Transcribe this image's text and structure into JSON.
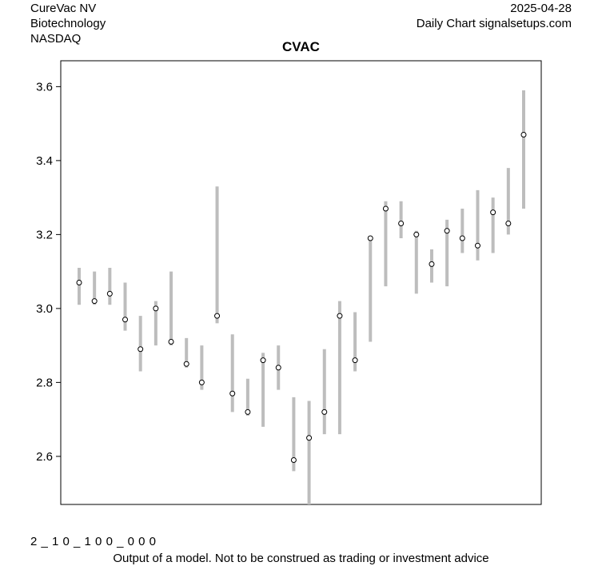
{
  "header": {
    "company": "CureVac NV",
    "sector": "Biotechnology",
    "exchange": "NASDAQ",
    "date": "2025-04-28",
    "source": "Daily Chart signalsetups.com"
  },
  "footer": {
    "code": "2 _ 1 0 _ 1 0 0 _ 0 0 0",
    "disclaimer": "Output of a model. Not to be construed as trading or investment advice"
  },
  "colors": {
    "range_bar": "#bdbdbd",
    "marker": "#000000",
    "frame": "#000000"
  },
  "chart_data": {
    "type": "scatter",
    "title": "CVAC",
    "xlabel": "",
    "ylabel": "",
    "ylim": [
      2.47,
      3.67
    ],
    "yticks": [
      "2.6",
      "2.8",
      "3.0",
      "3.2",
      "3.4",
      "3.6"
    ],
    "grid": false,
    "series": [
      {
        "values": [
          {
            "low": 3.01,
            "high": 3.11,
            "close": 3.07
          },
          {
            "low": 3.01,
            "high": 3.1,
            "close": 3.02
          },
          {
            "low": 3.01,
            "high": 3.11,
            "close": 3.04
          },
          {
            "low": 2.94,
            "high": 3.07,
            "close": 2.97
          },
          {
            "low": 2.83,
            "high": 2.98,
            "close": 2.89
          },
          {
            "low": 2.9,
            "high": 3.02,
            "close": 3.0
          },
          {
            "low": 2.9,
            "high": 3.1,
            "close": 2.91
          },
          {
            "low": 2.84,
            "high": 2.92,
            "close": 2.85
          },
          {
            "low": 2.78,
            "high": 2.9,
            "close": 2.8
          },
          {
            "low": 2.96,
            "high": 3.33,
            "close": 2.98
          },
          {
            "low": 2.72,
            "high": 2.93,
            "close": 2.77
          },
          {
            "low": 2.71,
            "high": 2.81,
            "close": 2.72
          },
          {
            "low": 2.68,
            "high": 2.88,
            "close": 2.86
          },
          {
            "low": 2.78,
            "high": 2.9,
            "close": 2.84
          },
          {
            "low": 2.56,
            "high": 2.76,
            "close": 2.59
          },
          {
            "low": 2.47,
            "high": 2.75,
            "close": 2.65
          },
          {
            "low": 2.66,
            "high": 2.89,
            "close": 2.72
          },
          {
            "low": 2.66,
            "high": 3.02,
            "close": 2.98
          },
          {
            "low": 2.83,
            "high": 2.99,
            "close": 2.86
          },
          {
            "low": 2.91,
            "high": 3.19,
            "close": 3.19
          },
          {
            "low": 3.06,
            "high": 3.29,
            "close": 3.27
          },
          {
            "low": 3.19,
            "high": 3.29,
            "close": 3.23
          },
          {
            "low": 3.04,
            "high": 3.21,
            "close": 3.2
          },
          {
            "low": 3.07,
            "high": 3.16,
            "close": 3.12
          },
          {
            "low": 3.06,
            "high": 3.24,
            "close": 3.21
          },
          {
            "low": 3.15,
            "high": 3.27,
            "close": 3.19
          },
          {
            "low": 3.13,
            "high": 3.32,
            "close": 3.17
          },
          {
            "low": 3.15,
            "high": 3.3,
            "close": 3.26
          },
          {
            "low": 3.2,
            "high": 3.38,
            "close": 3.23
          },
          {
            "low": 3.27,
            "high": 3.59,
            "close": 3.47
          }
        ]
      }
    ]
  }
}
